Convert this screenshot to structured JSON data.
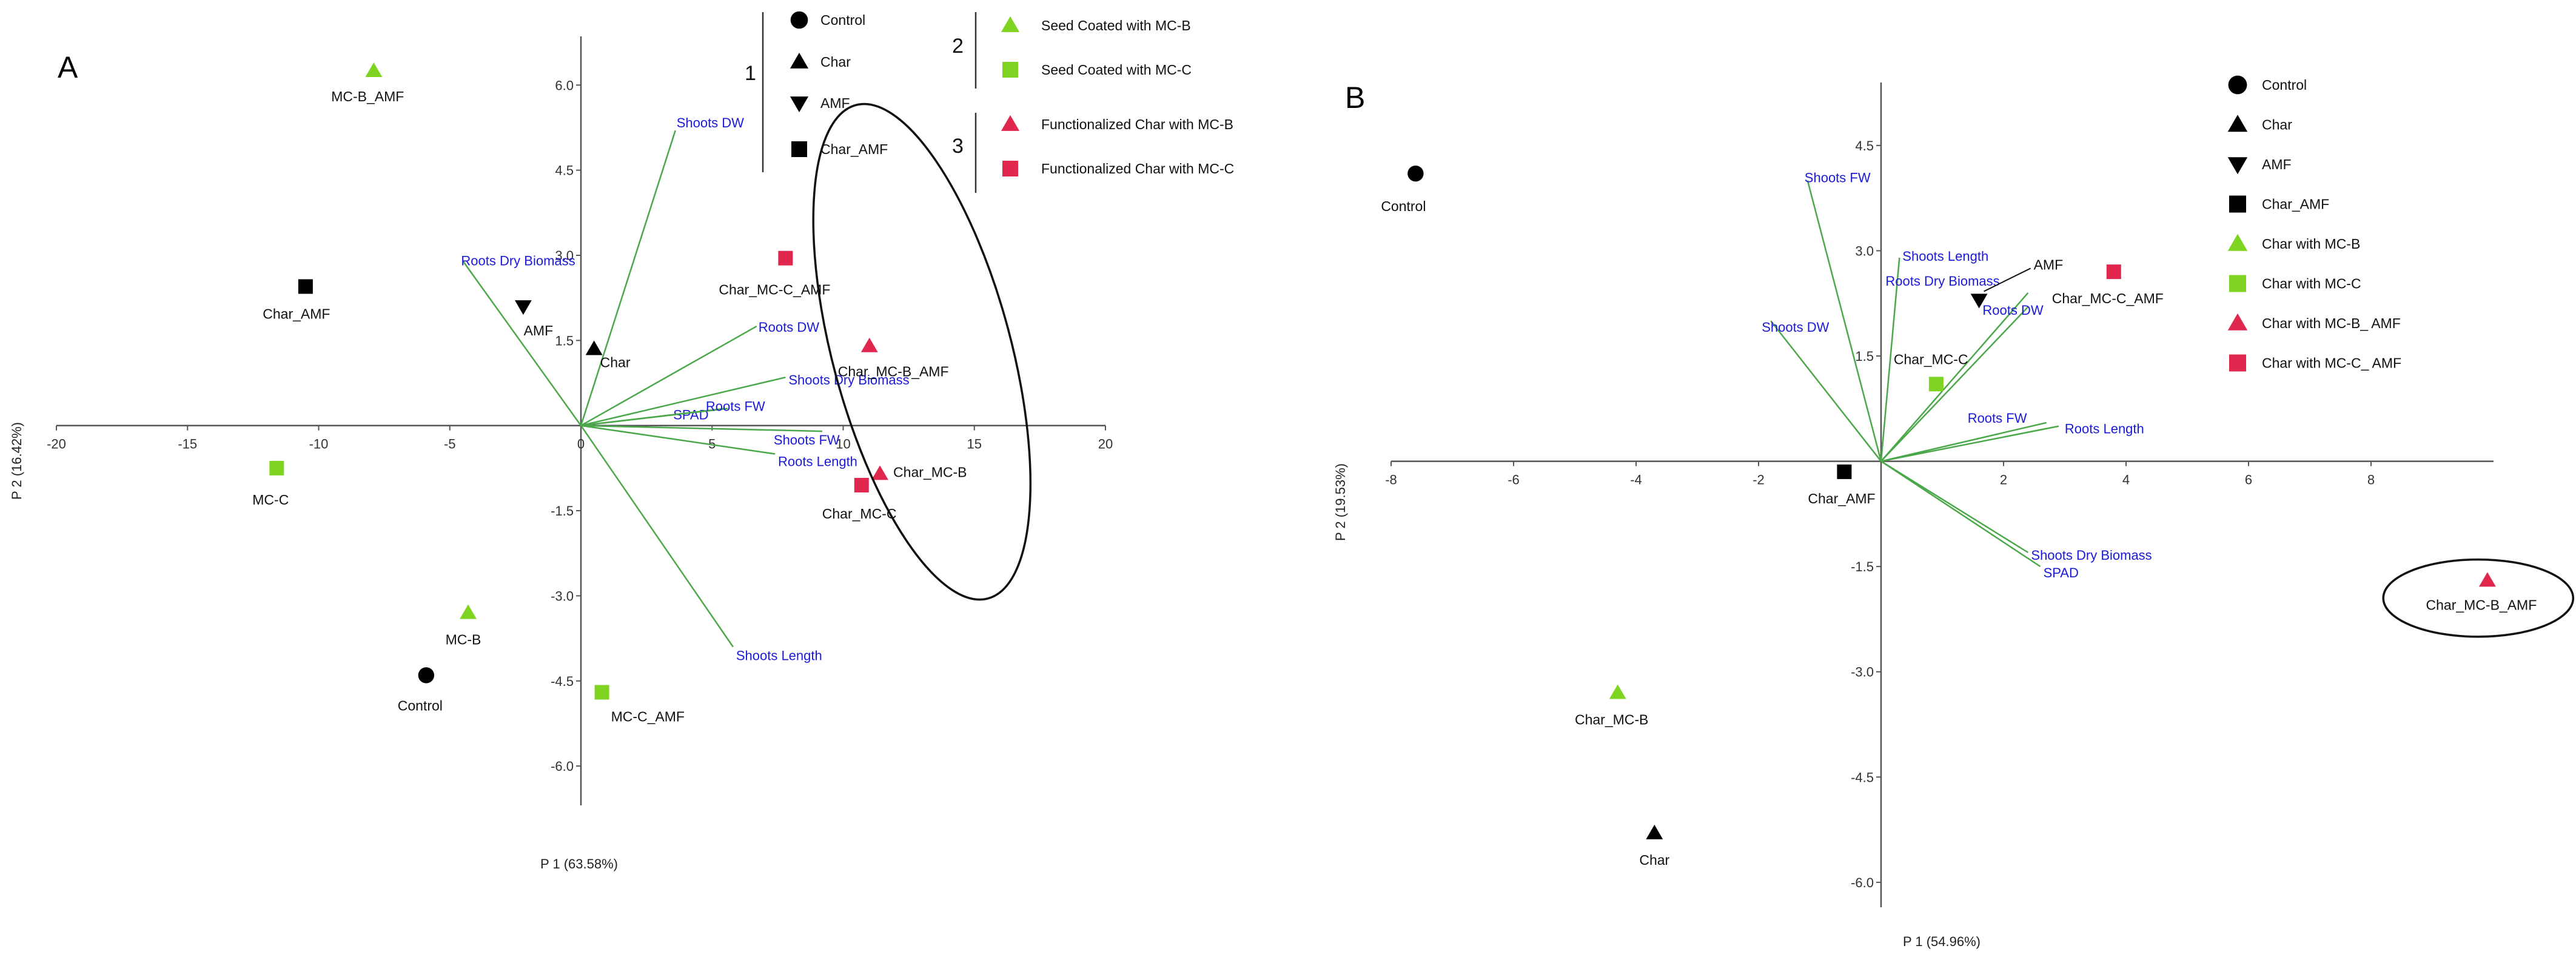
{
  "chart_data": [
    {
      "type": "scatter",
      "panel_label": "A",
      "xlabel": "P 1 (63.58%)",
      "ylabel": "P 2 (16.42%)",
      "xlim": [
        -20,
        20
      ],
      "ylim": [
        -6.8,
        7.2
      ],
      "xticks": [
        -20,
        -15,
        -10,
        -5,
        0,
        5,
        10,
        15,
        20
      ],
      "yticks": [
        -6.0,
        -4.5,
        -3.0,
        -1.5,
        1.5,
        3.0,
        4.5,
        6.0
      ],
      "ytick_labels": [
        "-6.0",
        "-4.5",
        "-3.0",
        "-1.5",
        "1.5",
        "3.0",
        "4.5",
        "6.0"
      ],
      "grid": false,
      "points": [
        {
          "label": "MC-B_AMF",
          "x": -7.9,
          "y": 6.25,
          "marker": "triangle",
          "color": "#7fd321"
        },
        {
          "label": "Char_AMF",
          "x": -10.5,
          "y": 2.45,
          "marker": "square",
          "color": "#000000"
        },
        {
          "label": "AMF",
          "x": -2.2,
          "y": 2.1,
          "marker": "triangle-down",
          "color": "#000000"
        },
        {
          "label": "Char",
          "x": 0.5,
          "y": 1.35,
          "marker": "triangle",
          "color": "#000000"
        },
        {
          "label": "MC-C",
          "x": -11.6,
          "y": -0.75,
          "marker": "square",
          "color": "#7fd321"
        },
        {
          "label": "MC-B",
          "x": -4.3,
          "y": -3.3,
          "marker": "triangle",
          "color": "#7fd321"
        },
        {
          "label": "Control",
          "x": -5.9,
          "y": -4.4,
          "marker": "circle",
          "color": "#000000"
        },
        {
          "label": "MC-C_AMF",
          "x": 0.8,
          "y": -4.7,
          "marker": "square",
          "color": "#7fd321"
        },
        {
          "label": "Char_MC-C_AMF",
          "x": 7.8,
          "y": 2.95,
          "marker": "square",
          "color": "#e0284f"
        },
        {
          "label": "Char_MC-B_AMF",
          "x": 11.0,
          "y": 1.4,
          "marker": "triangle",
          "color": "#e0284f"
        },
        {
          "label": "Char_MC-B",
          "x": 11.4,
          "y": -0.85,
          "marker": "triangle",
          "color": "#e0284f"
        },
        {
          "label": "Char_MC-C",
          "x": 10.7,
          "y": -1.05,
          "marker": "square",
          "color": "#e0284f"
        }
      ],
      "loadings": [
        {
          "label": "Shoots DW",
          "x": 3.6,
          "y": 5.2
        },
        {
          "label": "Roots Dry Biomass",
          "x": -4.5,
          "y": 2.9
        },
        {
          "label": "Roots DW",
          "x": 6.7,
          "y": 1.75
        },
        {
          "label": "Shoots Dry Biomass",
          "x": 7.8,
          "y": 0.85
        },
        {
          "label": "SPAD",
          "x": 5.6,
          "y": 0.3
        },
        {
          "label": "Roots FW",
          "x": 5.5,
          "y": 0.3
        },
        {
          "label": "Shoots FW",
          "x": 9.2,
          "y": -0.1
        },
        {
          "label": "Roots Length",
          "x": 7.4,
          "y": -0.5
        },
        {
          "label": "Shoots Length",
          "x": 5.8,
          "y": -3.9
        }
      ],
      "legend_groups": [
        {
          "number": "1",
          "items": [
            {
              "label": "Control",
              "marker": "circle",
              "color": "#000000"
            },
            {
              "label": "Char",
              "marker": "triangle",
              "color": "#000000"
            },
            {
              "label": "AMF",
              "marker": "triangle-down",
              "color": "#000000"
            },
            {
              "label": "Char_AMF",
              "marker": "square",
              "color": "#000000"
            }
          ]
        },
        {
          "number": "2",
          "items": [
            {
              "label": "Seed Coated with MC-B",
              "marker": "triangle",
              "color": "#7fd321"
            },
            {
              "label": "Seed Coated with MC-C",
              "marker": "square",
              "color": "#7fd321"
            }
          ]
        },
        {
          "number": "3",
          "items": [
            {
              "label": "Functionalized Char with MC-B",
              "marker": "triangle",
              "color": "#e0284f"
            },
            {
              "label": "Functionalized Char with MC-C",
              "marker": "square",
              "color": "#e0284f"
            }
          ]
        }
      ],
      "ellipse": {
        "cx": 13.0,
        "cy": 1.3,
        "rx": 3.4,
        "ry": 4.5,
        "angle_deg": 15
      }
    },
    {
      "type": "scatter",
      "panel_label": "B",
      "xlabel": "P 1 (54.96%)",
      "ylabel": "P 2 (19.53%)",
      "xlim": [
        -8,
        10
      ],
      "ylim": [
        -6.2,
        5.0
      ],
      "xticks": [
        -8,
        -6,
        -4,
        -2,
        2,
        4,
        6,
        8
      ],
      "yticks": [
        -6.0,
        -4.5,
        -3.0,
        -1.5,
        1.5,
        3.0,
        4.5
      ],
      "ytick_labels": [
        "-6.0",
        "-4.5",
        "-3.0",
        "-1.5",
        "1.5",
        "3.0",
        "4.5"
      ],
      "grid": false,
      "points": [
        {
          "label": "Control",
          "x": -7.6,
          "y": 4.1,
          "marker": "circle",
          "color": "#000000"
        },
        {
          "label": "AMF",
          "x": 1.6,
          "y": 2.3,
          "marker": "triangle-down",
          "color": "#000000"
        },
        {
          "label": "Char_MC-C_AMF",
          "x": 3.8,
          "y": 2.7,
          "marker": "square",
          "color": "#e0284f"
        },
        {
          "label": "Char_MC-C",
          "x": 0.9,
          "y": 1.1,
          "marker": "square",
          "color": "#7fd321"
        },
        {
          "label": "Char_AMF",
          "x": -0.6,
          "y": -0.15,
          "marker": "square",
          "color": "#000000"
        },
        {
          "label": "Char_MC-B_AMF",
          "x": 9.9,
          "y": -1.7,
          "marker": "triangle",
          "color": "#e0284f"
        },
        {
          "label": "Char_MC-B",
          "x": -4.3,
          "y": -3.3,
          "marker": "triangle",
          "color": "#7fd321"
        },
        {
          "label": "Char",
          "x": -3.7,
          "y": -5.3,
          "marker": "triangle",
          "color": "#000000"
        }
      ],
      "loadings": [
        {
          "label": "Shoots FW",
          "x": -1.2,
          "y": 4.0
        },
        {
          "label": "Shoots Length",
          "x": 0.3,
          "y": 2.9
        },
        {
          "label": "Roots Dry Biomass",
          "x": 2.4,
          "y": 2.4
        },
        {
          "label": "Roots DW",
          "x": 2.4,
          "y": 2.2
        },
        {
          "label": "Shoots DW",
          "x": -1.8,
          "y": 2.0
        },
        {
          "label": "Roots FW",
          "x": 2.7,
          "y": 0.55
        },
        {
          "label": "Roots Length",
          "x": 2.9,
          "y": 0.5
        },
        {
          "label": "Shoots Dry Biomass",
          "x": 2.4,
          "y": -1.3
        },
        {
          "label": "SPAD",
          "x": 2.6,
          "y": -1.5
        }
      ],
      "legend": [
        {
          "label": "Control",
          "marker": "circle",
          "color": "#000000"
        },
        {
          "label": "Char",
          "marker": "triangle",
          "color": "#000000"
        },
        {
          "label": "AMF",
          "marker": "triangle-down",
          "color": "#000000"
        },
        {
          "label": "Char_AMF",
          "marker": "square",
          "color": "#000000"
        },
        {
          "label": "Char with MC-B",
          "marker": "triangle",
          "color": "#7fd321"
        },
        {
          "label": "Char with MC-C",
          "marker": "square",
          "color": "#7fd321"
        },
        {
          "label": "Char with MC-B_ AMF",
          "marker": "triangle",
          "color": "#e0284f"
        },
        {
          "label": "Char with MC-C_ AMF",
          "marker": "square",
          "color": "#e0284f"
        }
      ],
      "ellipse": {
        "cx": 9.75,
        "cy": -1.95,
        "rx": 1.55,
        "ry": 0.55,
        "angle_deg": 0
      }
    }
  ]
}
